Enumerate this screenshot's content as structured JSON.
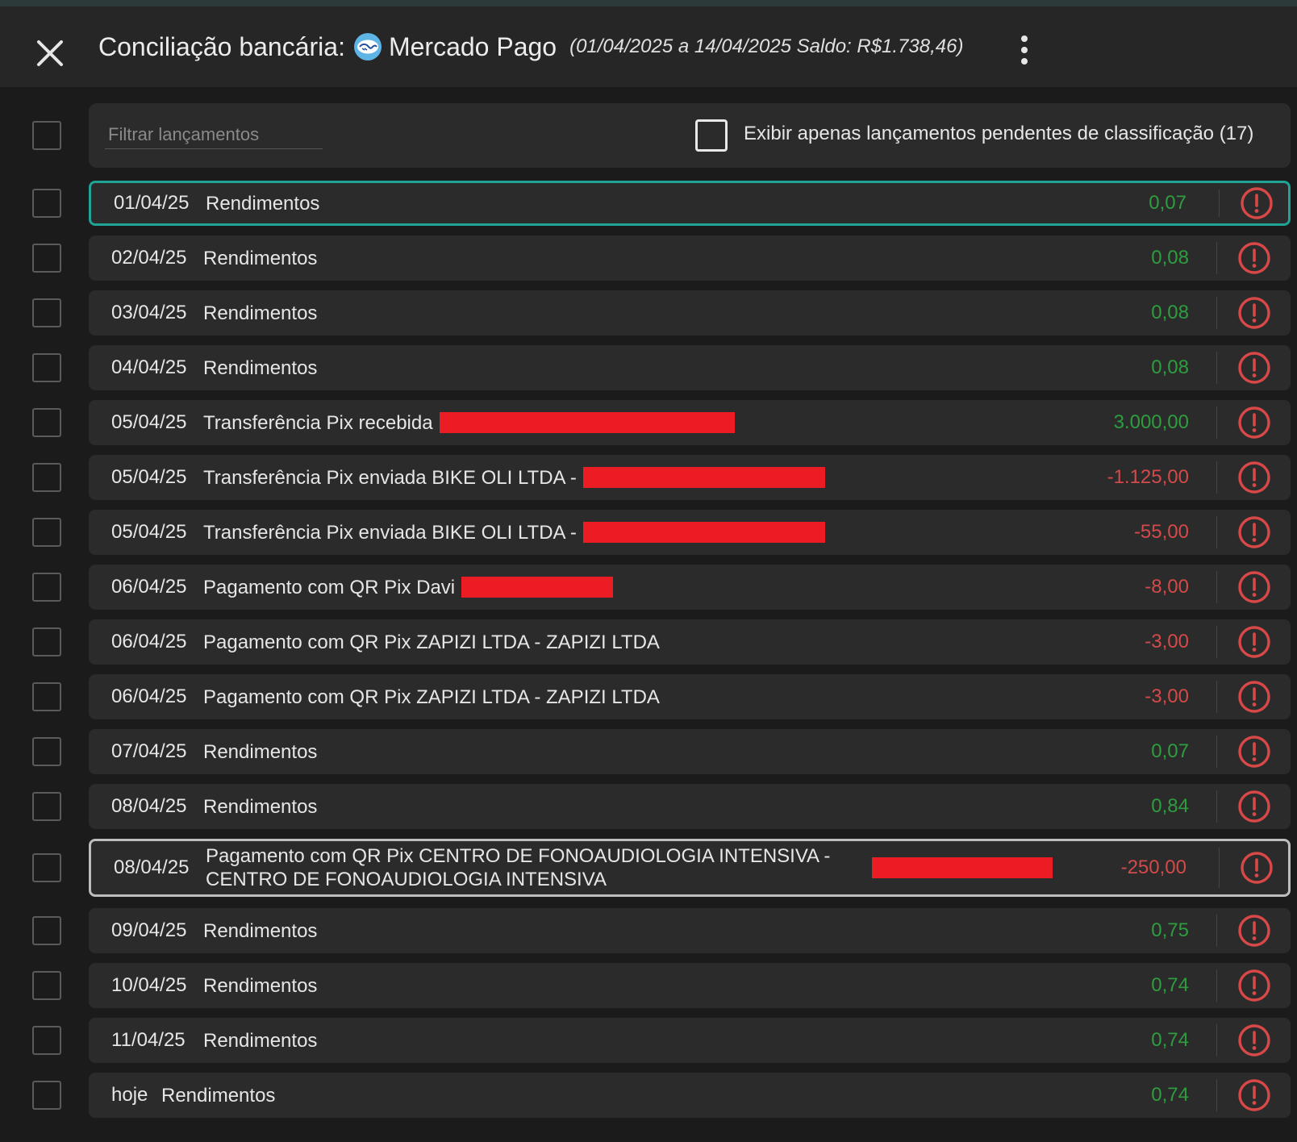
{
  "header": {
    "title": "Conciliação bancária:",
    "account_name": "Mercado Pago",
    "subtitle": "(01/04/2025 a 14/04/2025 Saldo: R$1.738,46)",
    "close_icon": "close-icon",
    "menu_icon": "kebab-menu-icon"
  },
  "filter": {
    "placeholder": "Filtrar lançamentos",
    "value": "",
    "pending_label": "Exibir apenas lançamentos pendentes de classificação (17)",
    "pending_checked": false
  },
  "colors": {
    "positive": "#2e9d3f",
    "negative": "#d44a4a",
    "selected_border": "#1fa394",
    "alert": "#d94848",
    "redaction": "#ec1c24"
  },
  "transactions": [
    {
      "date": "01/04/25",
      "description": "Rendimentos",
      "amount": "0,07",
      "sign": "positive",
      "status_icon": "alert-circle-icon",
      "selected": true
    },
    {
      "date": "02/04/25",
      "description": "Rendimentos",
      "amount": "0,08",
      "sign": "positive",
      "status_icon": "alert-circle-icon"
    },
    {
      "date": "03/04/25",
      "description": "Rendimentos",
      "amount": "0,08",
      "sign": "positive",
      "status_icon": "alert-circle-icon"
    },
    {
      "date": "04/04/25",
      "description": "Rendimentos",
      "amount": "0,08",
      "sign": "positive",
      "status_icon": "alert-circle-icon"
    },
    {
      "date": "05/04/25",
      "description": "Transferência Pix recebida",
      "amount": "3.000,00",
      "sign": "positive",
      "status_icon": "alert-circle-icon",
      "redacted": true
    },
    {
      "date": "05/04/25",
      "description": "Transferência Pix enviada BIKE OLI LTDA -",
      "amount": "-1.125,00",
      "sign": "negative",
      "status_icon": "alert-circle-icon",
      "redacted": true
    },
    {
      "date": "05/04/25",
      "description": "Transferência Pix enviada BIKE OLI LTDA -",
      "amount": "-55,00",
      "sign": "negative",
      "status_icon": "alert-circle-icon",
      "redacted": true
    },
    {
      "date": "06/04/25",
      "description": "Pagamento com QR Pix Davi",
      "amount": "-8,00",
      "sign": "negative",
      "status_icon": "alert-circle-icon",
      "redacted": true
    },
    {
      "date": "06/04/25",
      "description": "Pagamento com QR Pix ZAPIZI LTDA - ZAPIZI LTDA",
      "amount": "-3,00",
      "sign": "negative",
      "status_icon": "alert-circle-icon"
    },
    {
      "date": "06/04/25",
      "description": "Pagamento com QR Pix ZAPIZI LTDA - ZAPIZI LTDA",
      "amount": "-3,00",
      "sign": "negative",
      "status_icon": "alert-circle-icon"
    },
    {
      "date": "07/04/25",
      "description": "Rendimentos",
      "amount": "0,07",
      "sign": "positive",
      "status_icon": "alert-circle-icon"
    },
    {
      "date": "08/04/25",
      "description": "Rendimentos",
      "amount": "0,84",
      "sign": "positive",
      "status_icon": "alert-circle-icon"
    },
    {
      "date": "08/04/25",
      "description": "Pagamento com QR Pix CENTRO DE FONOAUDIOLOGIA INTENSIVA - CENTRO DE FONOAUDIOLOGIA INTENSIVA",
      "amount": "-250,00",
      "sign": "negative",
      "status_icon": "alert-circle-icon",
      "redacted": true,
      "hovered": true
    },
    {
      "date": "09/04/25",
      "description": "Rendimentos",
      "amount": "0,75",
      "sign": "positive",
      "status_icon": "alert-circle-icon"
    },
    {
      "date": "10/04/25",
      "description": "Rendimentos",
      "amount": "0,74",
      "sign": "positive",
      "status_icon": "alert-circle-icon"
    },
    {
      "date": "11/04/25",
      "description": "Rendimentos",
      "amount": "0,74",
      "sign": "positive",
      "status_icon": "alert-circle-icon"
    },
    {
      "date": "hoje",
      "description": "Rendimentos",
      "amount": "0,74",
      "sign": "positive",
      "status_icon": "alert-circle-icon"
    }
  ]
}
